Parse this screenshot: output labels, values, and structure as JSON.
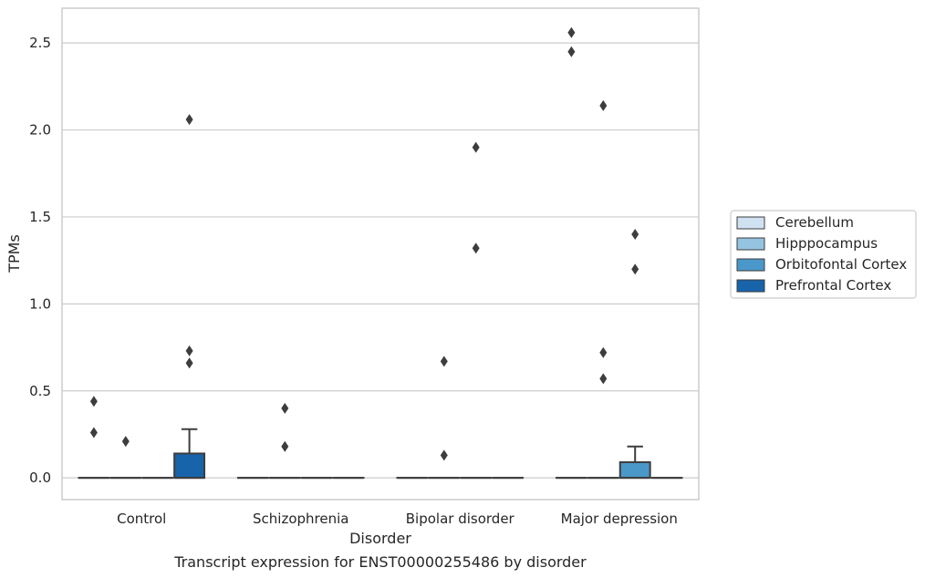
{
  "chart_data": {
    "type": "box",
    "title": "",
    "caption": "Transcript expression for ENST00000255486 by disorder",
    "xlabel": "Disorder",
    "ylabel": "TPMs",
    "ylim": [
      -0.125,
      2.7
    ],
    "yticks": [
      "0.0",
      "0.5",
      "1.0",
      "1.5",
      "2.0",
      "2.5"
    ],
    "ytick_values": [
      0,
      0.5,
      1.0,
      1.5,
      2.0,
      2.5
    ],
    "grid": "horizontal",
    "legend_placement": "right-outside",
    "categories": [
      "Control",
      "Schizophrenia",
      "Bipolar disorder",
      "Major depression"
    ],
    "series": [
      {
        "name": "Cerebellum",
        "color": "#d0e1f2",
        "boxes": [
          {
            "q1": 0,
            "median": 0,
            "q3": 0,
            "whisker_low": 0,
            "whisker_high": 0,
            "outliers": [
              0.44,
              0.26
            ]
          },
          {
            "q1": 0,
            "median": 0,
            "q3": 0,
            "whisker_low": 0,
            "whisker_high": 0,
            "outliers": []
          },
          {
            "q1": 0,
            "median": 0,
            "q3": 0,
            "whisker_low": 0,
            "whisker_high": 0,
            "outliers": []
          },
          {
            "q1": 0,
            "median": 0,
            "q3": 0,
            "whisker_low": 0,
            "whisker_high": 0,
            "outliers": [
              2.56,
              2.45
            ]
          }
        ]
      },
      {
        "name": "Hipppocampus",
        "color": "#94c4df",
        "boxes": [
          {
            "q1": 0,
            "median": 0,
            "q3": 0,
            "whisker_low": 0,
            "whisker_high": 0,
            "outliers": [
              0.21
            ]
          },
          {
            "q1": 0,
            "median": 0,
            "q3": 0,
            "whisker_low": 0,
            "whisker_high": 0,
            "outliers": [
              0.4,
              0.18
            ]
          },
          {
            "q1": 0,
            "median": 0,
            "q3": 0,
            "whisker_low": 0,
            "whisker_high": 0,
            "outliers": [
              0.67,
              0.13
            ]
          },
          {
            "q1": 0,
            "median": 0,
            "q3": 0,
            "whisker_low": 0,
            "whisker_high": 0,
            "outliers": [
              2.14,
              0.72,
              0.57
            ]
          }
        ]
      },
      {
        "name": "Orbitofontal Cortex",
        "color": "#4a98c9",
        "boxes": [
          {
            "q1": 0,
            "median": 0,
            "q3": 0,
            "whisker_low": 0,
            "whisker_high": 0,
            "outliers": []
          },
          {
            "q1": 0,
            "median": 0,
            "q3": 0,
            "whisker_low": 0,
            "whisker_high": 0,
            "outliers": []
          },
          {
            "q1": 0,
            "median": 0,
            "q3": 0,
            "whisker_low": 0,
            "whisker_high": 0,
            "outliers": [
              1.9,
              1.32
            ]
          },
          {
            "q1": 0,
            "median": 0,
            "q3": 0.09,
            "whisker_low": 0,
            "whisker_high": 0.18,
            "outliers": [
              1.4,
              1.2
            ]
          }
        ]
      },
      {
        "name": "Prefrontal Cortex",
        "color": "#1764ab",
        "boxes": [
          {
            "q1": 0,
            "median": 0,
            "q3": 0.14,
            "whisker_low": 0,
            "whisker_high": 0.28,
            "outliers": [
              2.06,
              0.73,
              0.66
            ]
          },
          {
            "q1": 0,
            "median": 0,
            "q3": 0,
            "whisker_low": 0,
            "whisker_high": 0,
            "outliers": []
          },
          {
            "q1": 0,
            "median": 0,
            "q3": 0,
            "whisker_low": 0,
            "whisker_high": 0,
            "outliers": []
          },
          {
            "q1": 0,
            "median": 0,
            "q3": 0,
            "whisker_low": 0,
            "whisker_high": 0,
            "outliers": []
          }
        ]
      }
    ]
  }
}
